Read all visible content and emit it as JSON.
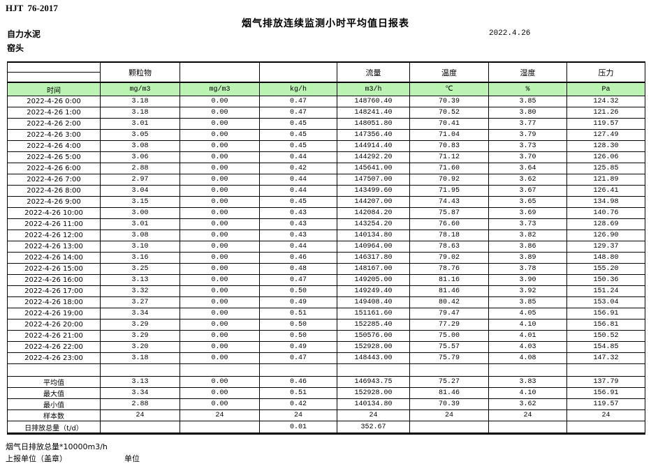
{
  "meta": {
    "standard_no": "HJT  76-2017",
    "title": "烟气排放连续监测小时平均值日报表",
    "company": "自力水泥",
    "station": "窑头",
    "date": "2022.4.26"
  },
  "colors": {
    "header_green": "#bbf3b3",
    "border_black": "#000000"
  },
  "table": {
    "header": {
      "time_label": "时间",
      "pollutant": "颗粒物",
      "col3_label": "",
      "col4_label": "",
      "flow": "流量",
      "temperature": "温度",
      "humidity": "湿度",
      "pressure": "压力",
      "units": [
        "mg/m3",
        "mg/m3",
        "kg/h",
        "m3/h",
        "℃",
        "%",
        "Pa"
      ]
    },
    "rows": [
      [
        "2022-4-26 0:00",
        "3.18",
        "0.00",
        "0.47",
        "148760.40",
        "70.39",
        "3.85",
        "124.32"
      ],
      [
        "2022-4-26 1:00",
        "3.18",
        "0.00",
        "0.47",
        "148241.40",
        "70.52",
        "3.80",
        "121.26"
      ],
      [
        "2022-4-26 2:00",
        "3.01",
        "0.00",
        "0.45",
        "148051.80",
        "70.41",
        "3.77",
        "119.57"
      ],
      [
        "2022-4-26 3:00",
        "3.05",
        "0.00",
        "0.45",
        "147356.40",
        "71.04",
        "3.79",
        "127.49"
      ],
      [
        "2022-4-26 4:00",
        "3.08",
        "0.00",
        "0.45",
        "144914.40",
        "70.83",
        "3.73",
        "128.30"
      ],
      [
        "2022-4-26 5:00",
        "3.06",
        "0.00",
        "0.44",
        "144292.20",
        "71.12",
        "3.70",
        "126.06"
      ],
      [
        "2022-4-26 6:00",
        "2.88",
        "0.00",
        "0.42",
        "145641.00",
        "71.60",
        "3.64",
        "125.85"
      ],
      [
        "2022-4-26 7:00",
        "2.97",
        "0.00",
        "0.44",
        "147507.00",
        "70.92",
        "3.62",
        "121.89"
      ],
      [
        "2022-4-26 8:00",
        "3.04",
        "0.00",
        "0.44",
        "143499.60",
        "71.95",
        "3.67",
        "126.41"
      ],
      [
        "2022-4-26 9:00",
        "3.15",
        "0.00",
        "0.45",
        "144207.00",
        "74.43",
        "3.65",
        "134.98"
      ],
      [
        "2022-4-26 10:00",
        "3.00",
        "0.00",
        "0.43",
        "142084.20",
        "75.87",
        "3.69",
        "140.76"
      ],
      [
        "2022-4-26 11:00",
        "3.01",
        "0.00",
        "0.43",
        "143254.20",
        "76.60",
        "3.73",
        "128.69"
      ],
      [
        "2022-4-26 12:00",
        "3.08",
        "0.00",
        "0.43",
        "140134.80",
        "78.18",
        "3.82",
        "126.90"
      ],
      [
        "2022-4-26 13:00",
        "3.10",
        "0.00",
        "0.44",
        "140964.00",
        "78.63",
        "3.86",
        "129.37"
      ],
      [
        "2022-4-26 14:00",
        "3.16",
        "0.00",
        "0.46",
        "146317.80",
        "79.02",
        "3.89",
        "148.80"
      ],
      [
        "2022-4-26 15:00",
        "3.25",
        "0.00",
        "0.48",
        "148167.00",
        "78.76",
        "3.78",
        "155.20"
      ],
      [
        "2022-4-26 16:00",
        "3.13",
        "0.00",
        "0.47",
        "149205.00",
        "81.16",
        "3.90",
        "150.36"
      ],
      [
        "2022-4-26 17:00",
        "3.32",
        "0.00",
        "0.50",
        "149249.40",
        "81.46",
        "3.92",
        "151.24"
      ],
      [
        "2022-4-26 18:00",
        "3.27",
        "0.00",
        "0.49",
        "149408.40",
        "80.42",
        "3.85",
        "153.04"
      ],
      [
        "2022-4-26 19:00",
        "3.34",
        "0.00",
        "0.51",
        "151161.60",
        "79.47",
        "4.05",
        "156.91"
      ],
      [
        "2022-4-26 20:00",
        "3.29",
        "0.00",
        "0.50",
        "152285.40",
        "77.29",
        "4.10",
        "156.81"
      ],
      [
        "2022-4-26 21:00",
        "3.29",
        "0.00",
        "0.50",
        "150576.00",
        "75.00",
        "4.01",
        "150.52"
      ],
      [
        "2022-4-26 22:00",
        "3.20",
        "0.00",
        "0.49",
        "152928.00",
        "75.57",
        "4.03",
        "154.85"
      ],
      [
        "2022-4-26 23:00",
        "3.18",
        "0.00",
        "0.47",
        "148443.00",
        "75.79",
        "4.08",
        "147.32"
      ]
    ],
    "summary_rows": [
      [
        "平均值",
        "3.13",
        "0.00",
        "0.46",
        "146943.75",
        "75.27",
        "3.83",
        "137.79"
      ],
      [
        "最大值",
        "3.34",
        "0.00",
        "0.51",
        "152928.00",
        "81.46",
        "4.10",
        "156.91"
      ],
      [
        "最小值",
        "2.88",
        "0.00",
        "0.42",
        "140134.80",
        "70.39",
        "3.62",
        "119.57"
      ],
      [
        "样本数",
        "24",
        "24",
        "24",
        "24",
        "24",
        "24",
        "24"
      ],
      [
        "日排放总量（t/d）",
        "",
        "",
        "0.01",
        "352.67",
        "",
        "",
        ""
      ]
    ]
  },
  "footer": {
    "note": "烟气日排放总量*10000m3/h",
    "report_unit_label": "上报单位（盖章）",
    "unit_label": "单位"
  }
}
